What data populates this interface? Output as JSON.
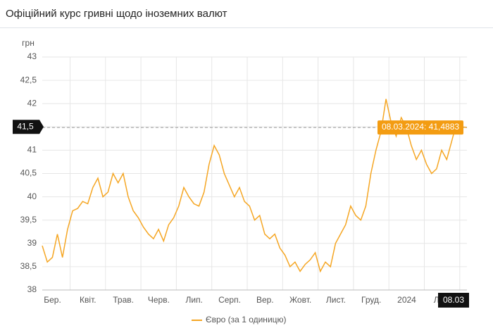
{
  "header": {
    "title": "Офіційний курс гривні щодо іноземних валют"
  },
  "chart_data": {
    "type": "line",
    "y_axis_label": "грн",
    "x_labels": [
      "Бер.",
      "Квіт.",
      "Трав.",
      "Черв.",
      "Лип.",
      "Серп.",
      "Вер.",
      "Жовт.",
      "Лист.",
      "Груд.",
      "2024",
      "Лют."
    ],
    "series": [
      {
        "name": "Євро (за 1 одиницю)",
        "color": "#f5a623",
        "values": [
          38.95,
          38.6,
          38.7,
          39.2,
          38.7,
          39.3,
          39.7,
          39.75,
          39.9,
          39.85,
          40.2,
          40.4,
          40.0,
          40.1,
          40.5,
          40.3,
          40.5,
          40.0,
          39.7,
          39.55,
          39.35,
          39.2,
          39.1,
          39.3,
          39.05,
          39.4,
          39.55,
          39.8,
          40.2,
          40.0,
          39.85,
          39.8,
          40.1,
          40.7,
          41.1,
          40.9,
          40.5,
          40.25,
          40.0,
          40.2,
          39.9,
          39.8,
          39.5,
          39.6,
          39.2,
          39.1,
          39.2,
          38.9,
          38.75,
          38.5,
          38.6,
          38.4,
          38.55,
          38.65,
          38.8,
          38.4,
          38.6,
          38.5,
          39.0,
          39.2,
          39.4,
          39.8,
          39.6,
          39.5,
          39.8,
          40.5,
          41.0,
          41.4,
          42.1,
          41.6,
          41.3,
          41.7,
          41.5,
          41.1,
          40.8,
          41.0,
          40.7,
          40.5,
          40.6,
          41.0,
          40.8,
          41.2,
          41.6,
          41.5,
          41.4883
        ]
      }
    ],
    "ylim": [
      38,
      43
    ],
    "yticks": [
      38,
      {
        "value": 38.5,
        "label": "38,5"
      },
      39,
      {
        "value": 39.5,
        "label": "39,5"
      },
      40,
      {
        "value": 40.5,
        "label": "40,5"
      },
      41,
      {
        "value": 41.5,
        "label": "41,5"
      },
      42,
      {
        "value": 42.5,
        "label": "42,5"
      },
      43
    ],
    "grid": true,
    "crosshair_y": {
      "value": 41.5,
      "label": "41,5"
    },
    "tooltip": {
      "value": 41.4883,
      "label": "08.03.2024: 41,4883"
    },
    "crosshair_x_label": "08.03",
    "legend": "bottom"
  }
}
